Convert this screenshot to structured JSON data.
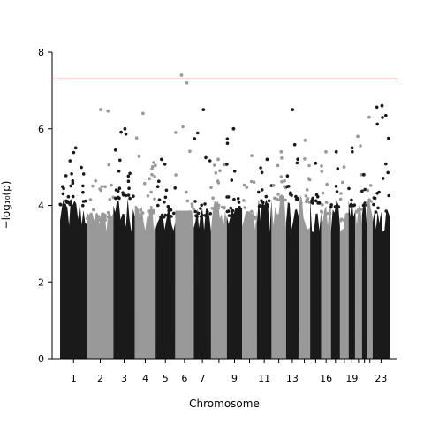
{
  "chart_data": {
    "type": "scatter",
    "subtype": "manhattan",
    "xlabel": "Chromosome",
    "ylabel": "−log₁₀(p)",
    "ylim": [
      0,
      8
    ],
    "y_ticks": [
      0,
      2,
      4,
      6,
      8
    ],
    "threshold": {
      "value": 7.3,
      "color": "#d62728"
    },
    "point_colors": [
      "#1a1a1a",
      "#999999"
    ],
    "x_tick_labels": [
      "1",
      "2",
      "3",
      "4",
      "5",
      "6",
      "7",
      "9",
      "11",
      "13",
      "16",
      "19",
      "23"
    ],
    "chromosomes": [
      {
        "chr": 1,
        "peak": 5.5
      },
      {
        "chr": 2,
        "peak": 6.5
      },
      {
        "chr": 3,
        "peak": 6.0
      },
      {
        "chr": 4,
        "peak": 6.4
      },
      {
        "chr": 5,
        "peak": 5.2
      },
      {
        "chr": 6,
        "peak": 7.4
      },
      {
        "chr": 7,
        "peak": 6.5
      },
      {
        "chr": 8,
        "peak": 5.2
      },
      {
        "chr": 9,
        "peak": 6.0
      },
      {
        "chr": 10,
        "peak": 5.3
      },
      {
        "chr": 11,
        "peak": 5.2
      },
      {
        "chr": 12,
        "peak": 5.4
      },
      {
        "chr": 13,
        "peak": 6.5
      },
      {
        "chr": 14,
        "peak": 5.7
      },
      {
        "chr": 15,
        "peak": 5.1
      },
      {
        "chr": 16,
        "peak": 5.4
      },
      {
        "chr": 17,
        "peak": 5.4
      },
      {
        "chr": 18,
        "peak": 5.0
      },
      {
        "chr": 19,
        "peak": 5.5
      },
      {
        "chr": 20,
        "peak": 5.8
      },
      {
        "chr": 21,
        "peak": 4.8
      },
      {
        "chr": 22,
        "peak": 6.3
      },
      {
        "chr": 23,
        "peak": 6.6
      }
    ]
  }
}
